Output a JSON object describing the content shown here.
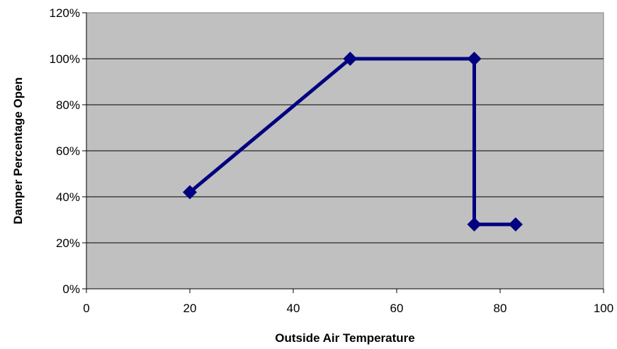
{
  "chart_data": {
    "type": "line",
    "title": "",
    "xlabel": "Outside Air Temperature",
    "ylabel": "Damper Percentage Open",
    "xlim": [
      0,
      100
    ],
    "ylim": [
      0,
      120
    ],
    "x_ticks": [
      0,
      20,
      40,
      60,
      80,
      100
    ],
    "x_tick_labels": [
      "0",
      "20",
      "40",
      "60",
      "80",
      "100"
    ],
    "y_ticks": [
      0,
      20,
      40,
      60,
      80,
      100,
      120
    ],
    "y_tick_labels": [
      "0%",
      "20%",
      "40%",
      "60%",
      "80%",
      "100%",
      "120%"
    ],
    "grid": "horizontal",
    "legend": "none",
    "colors": {
      "plot_background": "#c0c0c0",
      "series": "#000080",
      "gridline": "#000000"
    },
    "series": [
      {
        "marker": "diamond",
        "points": [
          {
            "x": 20,
            "y": 42
          },
          {
            "x": 51,
            "y": 100
          },
          {
            "x": 75,
            "y": 100
          },
          {
            "x": 75,
            "y": 28
          },
          {
            "x": 83,
            "y": 28
          }
        ]
      }
    ]
  }
}
